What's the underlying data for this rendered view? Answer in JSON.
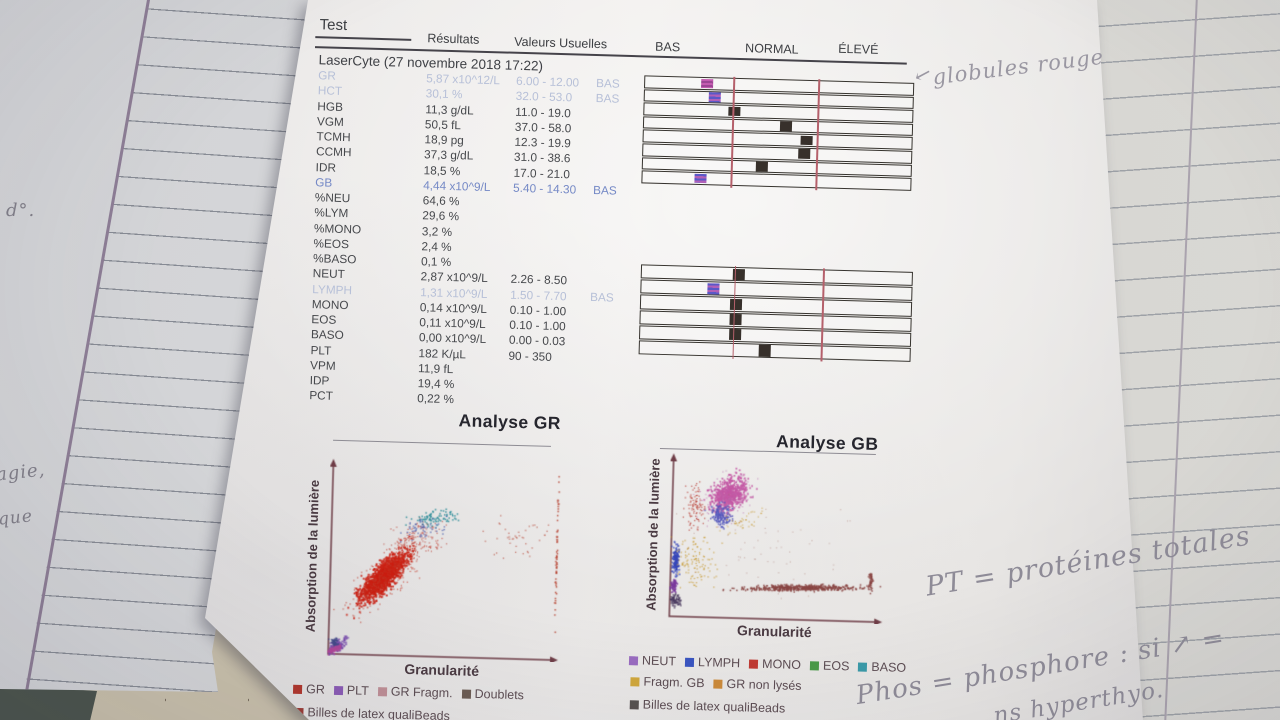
{
  "report": {
    "columns": {
      "test": "Test",
      "results": "Résultats",
      "usual_values": "Valeurs Usuelles",
      "low": "BAS",
      "normal": "NORMAL",
      "high": "ÉLEVÉ"
    },
    "analyzer_line": "LaserCyte (27 novembre 2018 17:22)",
    "rows": [
      {
        "name": "GR",
        "value": "5,87 x10^12/L",
        "range": "6.00 - 12.00",
        "flag": "BAS",
        "style": "faint"
      },
      {
        "name": "HCT",
        "value": "30,1 %",
        "range": "32.0 - 53.0",
        "flag": "BAS",
        "style": "faint"
      },
      {
        "name": "HGB",
        "value": "11,3 g/dL",
        "range": "11.0 - 19.0",
        "flag": "",
        "style": ""
      },
      {
        "name": "VGM",
        "value": "50,5 fL",
        "range": "37.0 - 58.0",
        "flag": "",
        "style": ""
      },
      {
        "name": "TCMH",
        "value": "18,9 pg",
        "range": "12.3 - 19.9",
        "flag": "",
        "style": ""
      },
      {
        "name": "CCMH",
        "value": "37,3 g/dL",
        "range": "31.0 - 38.6",
        "flag": "",
        "style": ""
      },
      {
        "name": "IDR",
        "value": "18,5 %",
        "range": "17.0 - 21.0",
        "flag": "",
        "style": ""
      },
      {
        "name": "GB",
        "value": "4,44 x10^9/L",
        "range": "5.40 - 14.30",
        "flag": "BAS",
        "style": "blue"
      },
      {
        "name": "%NEU",
        "value": "64,6 %",
        "range": "",
        "flag": "",
        "style": ""
      },
      {
        "name": "%LYM",
        "value": "29,6 %",
        "range": "",
        "flag": "",
        "style": ""
      },
      {
        "name": "%MONO",
        "value": "3,2 %",
        "range": "",
        "flag": "",
        "style": ""
      },
      {
        "name": "%EOS",
        "value": "2,4 %",
        "range": "",
        "flag": "",
        "style": ""
      },
      {
        "name": "%BASO",
        "value": "0,1 %",
        "range": "",
        "flag": "",
        "style": ""
      },
      {
        "name": "NEUT",
        "value": "2,87 x10^9/L",
        "range": "2.26 - 8.50",
        "flag": "",
        "style": ""
      },
      {
        "name": "LYMPH",
        "value": "1,31 x10^9/L",
        "range": "1.50 - 7.70",
        "flag": "BAS",
        "style": "faint"
      },
      {
        "name": "MONO",
        "value": "0,14 x10^9/L",
        "range": "0.10 - 1.00",
        "flag": "",
        "style": ""
      },
      {
        "name": "EOS",
        "value": "0,11 x10^9/L",
        "range": "0.10 - 1.00",
        "flag": "",
        "style": ""
      },
      {
        "name": "BASO",
        "value": "0,00 x10^9/L",
        "range": "0.00 - 0.03",
        "flag": "",
        "style": ""
      },
      {
        "name": "PLT",
        "value": "182 K/µL",
        "range": "90 - 350",
        "flag": "",
        "style": ""
      },
      {
        "name": "VPM",
        "value": "11,9 fL",
        "range": "",
        "flag": "",
        "style": ""
      },
      {
        "name": "IDP",
        "value": "19,4 %",
        "range": "",
        "flag": "",
        "style": ""
      },
      {
        "name": "PCT",
        "value": "0,22 %",
        "range": "",
        "flag": "",
        "style": ""
      }
    ]
  },
  "photo": {
    "handwritten_annotations": {
      "globules_arrow": "←",
      "globules": "globules rouge",
      "pt": "PT = protéines totales",
      "phos_line1": "Phos = phosphore : si ↗ =",
      "phos_line2": "...ns hyperthyo.",
      "notebook_fragments": [
        "d°.",
        "agie,",
        "que"
      ]
    },
    "colors": {
      "pencil": "#8e8b97",
      "desk": "#c9c0ab",
      "paper": "#efeeec",
      "limit_line_red": "#b5606b"
    }
  },
  "chart_data": [
    {
      "type": "range-indicator",
      "name": "erythrogram-panel",
      "zones": [
        "BAS",
        "NORMAL",
        "ÉLEVÉ"
      ],
      "limit_lines": [
        0.33,
        0.644
      ],
      "rows": [
        {
          "name": "GR",
          "marker": "pink",
          "position": 0.23
        },
        {
          "name": "HCT",
          "marker": "blueviolet",
          "position": 0.26
        },
        {
          "name": "HGB",
          "marker": "dark",
          "position": 0.335
        },
        {
          "name": "VGM",
          "marker": "dark",
          "position": 0.53
        },
        {
          "name": "TCMH",
          "marker": "dark",
          "position": 0.607
        },
        {
          "name": "CCMH",
          "marker": "dark",
          "position": 0.6
        },
        {
          "name": "IDR",
          "marker": "dark",
          "position": 0.445
        },
        {
          "name": "GB",
          "marker": "blueviolet",
          "position": 0.215
        }
      ]
    },
    {
      "type": "range-indicator",
      "name": "leukogram-panel",
      "zones": [
        "BAS",
        "NORMAL",
        "ÉLEVÉ"
      ],
      "limit_lines": [
        0.344,
        0.67
      ],
      "rows": [
        {
          "name": "NEUT",
          "marker": "dark",
          "position": 0.36
        },
        {
          "name": "LYMPH",
          "marker": "blueviolet",
          "position": 0.265
        },
        {
          "name": "MONO",
          "marker": "dark",
          "position": 0.352
        },
        {
          "name": "EOS",
          "marker": "dark",
          "position": 0.352
        },
        {
          "name": "BASO",
          "marker": "dark",
          "position": 0.352
        },
        {
          "name": "PLT",
          "marker": "dark",
          "position": 0.462
        }
      ]
    },
    {
      "type": "scatter",
      "title": "Analyse GR",
      "xlabel": "Granularité",
      "ylabel": "Absorption de la lumière",
      "legend": [
        {
          "label": "GR",
          "color": "#b0362b"
        },
        {
          "label": "PLT",
          "color": "#8a5ab4"
        },
        {
          "label": "GR Fragm.",
          "color": "#bf8f96"
        },
        {
          "label": "Doublets",
          "color": "#6b5b52"
        }
      ],
      "legend2": [
        {
          "label": "Billes de latex qualiBeads",
          "color": "#9a3a34"
        }
      ],
      "clusters": [
        {
          "label": "PLT cluster",
          "cx": 0.045,
          "cy": 0.055,
          "rx": 0.055,
          "ry": 0.03,
          "rot": 35,
          "n": 160,
          "color": "#7b4fae",
          "size": 1.7
        },
        {
          "label": "PLT magenta",
          "cx": 0.03,
          "cy": 0.035,
          "rx": 0.04,
          "ry": 0.018,
          "rot": 25,
          "n": 90,
          "color": "#b04898",
          "size": 1.6
        },
        {
          "label": "origin dark",
          "cx": 0.035,
          "cy": 0.075,
          "rx": 0.018,
          "ry": 0.02,
          "rot": 0,
          "n": 50,
          "color": "#444a8a",
          "size": 1.5
        },
        {
          "label": "GR core",
          "cx": 0.235,
          "cy": 0.41,
          "rx": 0.165,
          "ry": 0.062,
          "rot": 48,
          "n": 1300,
          "color": "#cb1f12",
          "size": 1.8
        },
        {
          "label": "GR halo",
          "cx": 0.26,
          "cy": 0.43,
          "rx": 0.23,
          "ry": 0.1,
          "rot": 48,
          "n": 380,
          "color": "#c33526",
          "size": 1.2,
          "alpha": 0.75
        },
        {
          "label": "GR sparse upper",
          "cx": 0.37,
          "cy": 0.6,
          "rx": 0.13,
          "ry": 0.11,
          "rot": 30,
          "n": 160,
          "color": "#ba392e",
          "size": 1.1,
          "alpha": 0.8
        },
        {
          "label": "GR Fragm. teal",
          "cx": 0.45,
          "cy": 0.715,
          "rx": 0.105,
          "ry": 0.048,
          "rot": 12,
          "n": 85,
          "color": "#2e8d99",
          "size": 1.5
        },
        {
          "label": "Doublets blue",
          "cx": 0.4,
          "cy": 0.655,
          "rx": 0.1,
          "ry": 0.06,
          "rot": 12,
          "n": 55,
          "color": "#4a5fb0",
          "size": 1.3
        },
        {
          "label": "right sparse",
          "cx": 0.8,
          "cy": 0.63,
          "rx": 0.16,
          "ry": 0.13,
          "rot": 0,
          "n": 42,
          "color": "#b84a3a",
          "size": 1.2,
          "alpha": 0.8
        },
        {
          "label": "right edge line",
          "cx": 0.975,
          "cy": 0.55,
          "rx": 0.004,
          "ry": 0.4,
          "rot": 0,
          "n": 60,
          "color": "#b84a3a",
          "size": 1.5
        }
      ]
    },
    {
      "type": "scatter",
      "title": "Analyse GB",
      "xlabel": "Granularité",
      "ylabel": "Absorption de la lumière",
      "legend": [
        {
          "label": "NEUT",
          "color": "#9a6cc0"
        },
        {
          "label": "LYMPH",
          "color": "#3a55c0"
        },
        {
          "label": "MONO",
          "color": "#c03a32"
        },
        {
          "label": "EOS",
          "color": "#4a9a48"
        },
        {
          "label": "BASO",
          "color": "#3a9aa8"
        }
      ],
      "legend2": [
        {
          "label": "Fragm. GB",
          "color": "#d0a73c"
        },
        {
          "label": "GR non lysés",
          "color": "#cc8a3a"
        }
      ],
      "legend3": [
        {
          "label": "Billes de latex qualiBeads",
          "color": "#56504e"
        }
      ],
      "clusters": [
        {
          "label": "NEUT cloud",
          "cx": 0.27,
          "cy": 0.76,
          "rx": 0.105,
          "ry": 0.1,
          "rot": 38,
          "n": 650,
          "color": "#c457a4",
          "size": 1.7
        },
        {
          "label": "NEUT halo",
          "cx": 0.25,
          "cy": 0.73,
          "rx": 0.15,
          "ry": 0.14,
          "rot": 38,
          "n": 160,
          "color": "#b769ab",
          "size": 1.1,
          "alpha": 0.7
        },
        {
          "label": "LYMPH mid",
          "cx": 0.235,
          "cy": 0.635,
          "rx": 0.05,
          "ry": 0.08,
          "rot": 15,
          "n": 150,
          "color": "#5457bc",
          "size": 1.5
        },
        {
          "label": "MONO red sparse",
          "cx": 0.115,
          "cy": 0.68,
          "rx": 0.055,
          "ry": 0.16,
          "rot": 0,
          "n": 95,
          "color": "#b73a31",
          "size": 1.2,
          "alpha": 0.85
        },
        {
          "label": "LYMPH left column",
          "cx": 0.035,
          "cy": 0.36,
          "rx": 0.018,
          "ry": 0.105,
          "rot": 0,
          "n": 160,
          "color": "#3747b8",
          "size": 1.5
        },
        {
          "label": "purple left",
          "cx": 0.027,
          "cy": 0.205,
          "rx": 0.016,
          "ry": 0.05,
          "rot": 0,
          "n": 75,
          "color": "#7a3a9c",
          "size": 1.5
        },
        {
          "label": "dark left bottom",
          "cx": 0.035,
          "cy": 0.115,
          "rx": 0.03,
          "ry": 0.045,
          "rot": 0,
          "n": 85,
          "color": "#4a3a5e",
          "size": 1.4
        },
        {
          "label": "Fragm. GB yellow",
          "cx": 0.12,
          "cy": 0.33,
          "rx": 0.115,
          "ry": 0.19,
          "rot": 0,
          "n": 120,
          "color": "#c79a31",
          "size": 1.2,
          "alpha": 0.85
        },
        {
          "label": "yellow upper",
          "cx": 0.33,
          "cy": 0.6,
          "rx": 0.13,
          "ry": 0.07,
          "rot": 20,
          "n": 45,
          "color": "#c79a31",
          "size": 1.1,
          "alpha": 0.8
        },
        {
          "label": "qualiBeads band",
          "cx": 0.62,
          "cy": 0.21,
          "rx": 0.29,
          "ry": 0.02,
          "rot": 2,
          "n": 550,
          "color": "#8a4744",
          "size": 1.5
        },
        {
          "label": "band tail",
          "cx": 0.935,
          "cy": 0.26,
          "rx": 0.012,
          "ry": 0.075,
          "rot": 0,
          "n": 55,
          "color": "#8a4744",
          "size": 1.5
        },
        {
          "label": "scatter misc",
          "cx": 0.45,
          "cy": 0.42,
          "rx": 0.42,
          "ry": 0.36,
          "rot": 0,
          "n": 55,
          "color": "#a2685c",
          "size": 1.0,
          "alpha": 0.5
        }
      ]
    }
  ]
}
